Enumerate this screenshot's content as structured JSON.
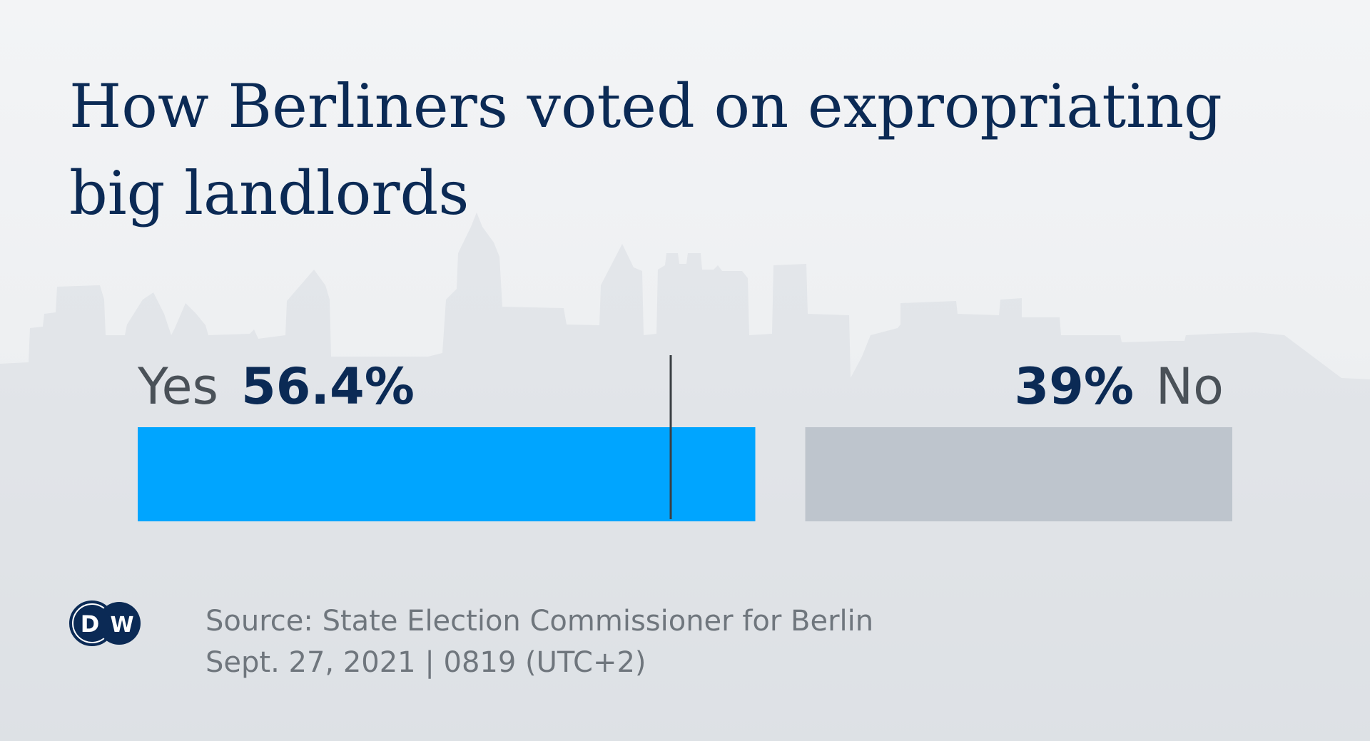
{
  "title": "How Berliners voted on expropriating big landlords",
  "chart_data": {
    "type": "bar",
    "orientation": "horizontal-stacked",
    "series": [
      {
        "name": "Yes",
        "value": 56.4,
        "label": "56.4%",
        "color": "#00a5ff"
      },
      {
        "name": "No",
        "value": 39,
        "label": "39%",
        "color": "#bec5cd"
      }
    ],
    "marker": {
      "value": 50
    },
    "total": 100
  },
  "source": {
    "line1": "Source: State Election Commissioner for Berlin",
    "line2": "Sept. 27, 2021 | 0819 (UTC+2)"
  },
  "logo": {
    "text": "DW"
  },
  "colors": {
    "title": "#0b2a55",
    "yes": "#00a5ff",
    "no": "#bec5cd",
    "skyline": "#d9dde1"
  }
}
